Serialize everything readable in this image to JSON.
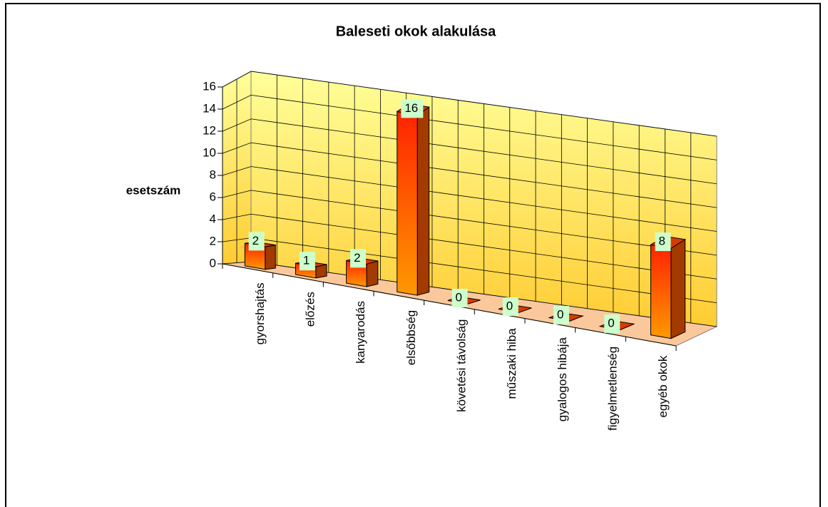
{
  "chart_data": {
    "type": "bar3d",
    "title": "Baleseti okok alakulása",
    "y_label": "esetszám",
    "categories": [
      "gyorshajtás",
      "előzés",
      "kanyarodás",
      "elsőbbség",
      "követési távolság",
      "műszaki hiba",
      "gyalogos hibája",
      "figyelmetlenség",
      "egyéb okok"
    ],
    "values": [
      2,
      1,
      2,
      16,
      0,
      0,
      0,
      0,
      8
    ],
    "ylim": [
      0,
      16
    ],
    "yticks": [
      0,
      2,
      4,
      6,
      8,
      10,
      12,
      14,
      16
    ],
    "grid": true,
    "color": "#ff6600"
  }
}
